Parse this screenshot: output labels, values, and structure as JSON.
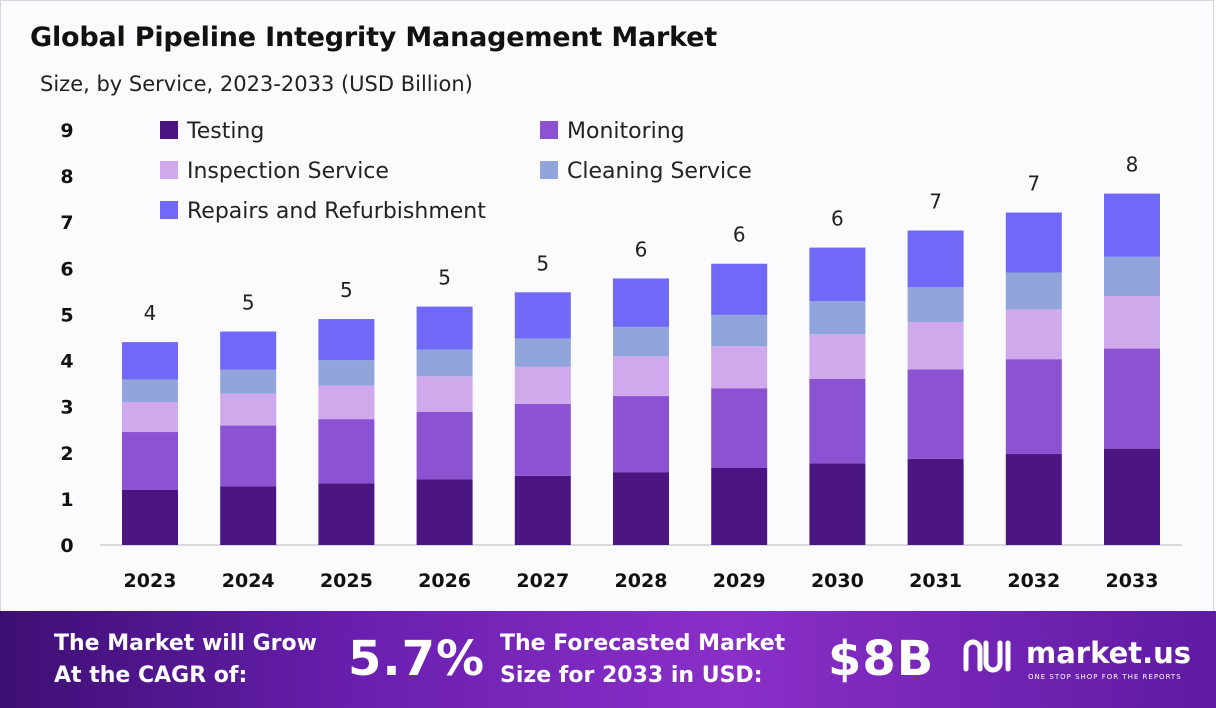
{
  "header": {
    "title": "Global Pipeline Integrity Management Market",
    "subtitle": "Size, by Service, 2023-2033 (USD Billion)"
  },
  "chart_data": {
    "type": "bar",
    "stacked": true,
    "categories": [
      "2023",
      "2024",
      "2025",
      "2026",
      "2027",
      "2028",
      "2029",
      "2030",
      "2031",
      "2032",
      "2033"
    ],
    "series": [
      {
        "name": "Testing",
        "color": "#4b1682",
        "values": [
          1.2,
          1.27,
          1.34,
          1.42,
          1.5,
          1.58,
          1.67,
          1.77,
          1.87,
          1.98,
          2.09
        ]
      },
      {
        "name": "Monitoring",
        "color": "#8b52d2",
        "values": [
          1.25,
          1.32,
          1.39,
          1.47,
          1.56,
          1.65,
          1.73,
          1.83,
          1.94,
          2.05,
          2.17
        ]
      },
      {
        "name": "Inspection Service",
        "color": "#cfa9ec",
        "values": [
          0.65,
          0.69,
          0.73,
          0.77,
          0.81,
          0.86,
          0.91,
          0.97,
          1.02,
          1.08,
          1.14
        ]
      },
      {
        "name": "Cleaning Service",
        "color": "#91a5dc",
        "values": [
          0.49,
          0.52,
          0.55,
          0.58,
          0.61,
          0.64,
          0.68,
          0.72,
          0.76,
          0.8,
          0.85
        ]
      },
      {
        "name": "Repairs and Refurbishment",
        "color": "#7068f7",
        "values": [
          0.81,
          0.83,
          0.89,
          0.93,
          1.0,
          1.05,
          1.11,
          1.16,
          1.23,
          1.3,
          1.37
        ]
      }
    ],
    "totals_labels": [
      "4",
      "5",
      "5",
      "5",
      "5",
      "6",
      "6",
      "6",
      "7",
      "7",
      "8"
    ],
    "ylim": [
      0,
      9
    ],
    "yticks": [
      "0",
      "1",
      "2",
      "3",
      "4",
      "5",
      "6",
      "7",
      "8",
      "9"
    ],
    "xlabel": "",
    "ylabel": "",
    "grid": false,
    "legend": "top-left"
  },
  "footer": {
    "cagr_text_line1": "The Market will Grow",
    "cagr_text_line2": "At the CAGR of:",
    "cagr_value": "5.7%",
    "forecast_text_line1": "The Forecasted Market",
    "forecast_text_line2": "Size for 2033 in USD:",
    "forecast_value": "$8B",
    "brand_name": "market.us",
    "brand_tagline": "ONE STOP SHOP FOR THE REPORTS"
  }
}
